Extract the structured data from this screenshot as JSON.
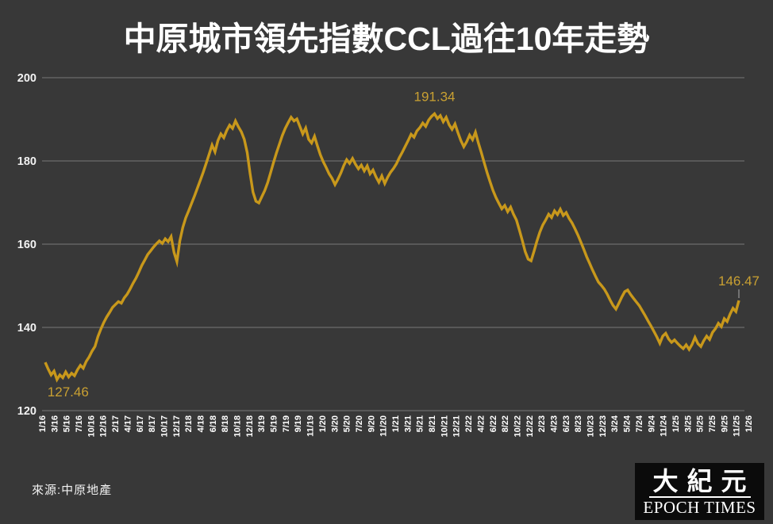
{
  "title": "中原城市領先指數CCL過往10年走勢",
  "source": "來源:中原地產",
  "logo": {
    "chinese": "大紀元",
    "english": "EPOCH TIMES"
  },
  "colors": {
    "background": "#383838",
    "line": "#C8981B",
    "grid": "#8f8f8f",
    "annotation": "#C9A032",
    "axis_text": "#f2f2f2",
    "tick_text": "#ffffff",
    "title_text": "#ffffff",
    "leader_line": "#aaaaaa",
    "logo_bg": "#0b0b0b",
    "logo_text": "#ffffff"
  },
  "chart_data": {
    "type": "line",
    "title": "中原城市領先指數CCL過往10年走勢",
    "xlabel": "",
    "ylabel": "",
    "ylim": [
      120,
      200
    ],
    "yticks": [
      200,
      180,
      160,
      140,
      120
    ],
    "grid": "horizontal",
    "legend": "none",
    "x_labels": [
      "1/16",
      "3/16",
      "5/16",
      "7/16",
      "10/16",
      "12/16",
      "2/17",
      "4/17",
      "6/17",
      "8/17",
      "10/17",
      "12/17",
      "2/18",
      "4/18",
      "6/18",
      "8/18",
      "10/18",
      "12/18",
      "3/19",
      "5/19",
      "7/19",
      "9/19",
      "11/19",
      "1/20",
      "3/20",
      "5/20",
      "7/20",
      "9/20",
      "11/20",
      "1/21",
      "3/21",
      "5/21",
      "8/21",
      "10/21",
      "12/21",
      "2/22",
      "4/22",
      "6/22",
      "8/22",
      "10/22",
      "12/22",
      "2/23",
      "4/23",
      "6/23",
      "8/23",
      "10/23",
      "12/23",
      "3/24",
      "5/24",
      "7/24",
      "9/24",
      "11/24",
      "1/25",
      "3/25",
      "5/25",
      "7/25",
      "9/25",
      "11/25",
      "1/26"
    ],
    "series": [
      {
        "name": "CCL",
        "values": [
          131.6,
          130.0,
          128.6,
          129.5,
          127.46,
          128.6,
          127.9,
          129.3,
          128.1,
          129.0,
          128.4,
          129.8,
          130.9,
          130.2,
          131.8,
          132.9,
          134.3,
          135.4,
          137.8,
          139.6,
          141.2,
          142.5,
          143.6,
          144.8,
          145.5,
          146.2,
          145.8,
          147.1,
          148.0,
          149.2,
          150.6,
          151.8,
          153.3,
          154.9,
          156.2,
          157.5,
          158.4,
          159.3,
          160.1,
          160.8,
          160.2,
          161.3,
          160.6,
          161.8,
          158.0,
          155.8,
          160.8,
          164.0,
          166.3,
          168.0,
          169.8,
          171.6,
          173.5,
          175.4,
          177.3,
          179.4,
          181.6,
          183.8,
          182.2,
          184.9,
          186.5,
          185.6,
          187.3,
          188.6,
          187.8,
          189.6,
          188.2,
          187.0,
          185.2,
          182.0,
          177.0,
          172.5,
          170.3,
          169.9,
          171.4,
          172.9,
          174.8,
          177.2,
          179.6,
          181.9,
          184.0,
          186.1,
          187.8,
          189.2,
          190.5,
          189.6,
          190.1,
          188.3,
          186.5,
          187.9,
          185.2,
          184.3,
          185.9,
          183.6,
          181.5,
          179.8,
          178.4,
          176.9,
          175.8,
          174.3,
          175.6,
          177.1,
          178.9,
          180.3,
          179.4,
          180.6,
          179.2,
          178.1,
          179.0,
          177.6,
          178.8,
          176.9,
          177.8,
          176.2,
          174.9,
          176.4,
          174.6,
          176.1,
          177.3,
          178.2,
          179.3,
          180.8,
          182.1,
          183.5,
          184.9,
          186.4,
          185.7,
          187.2,
          188.0,
          189.1,
          188.3,
          189.8,
          190.7,
          191.34,
          190.2,
          190.9,
          189.4,
          190.5,
          188.7,
          187.6,
          188.9,
          186.8,
          184.9,
          183.4,
          184.6,
          186.2,
          185.1,
          186.9,
          184.3,
          182.0,
          179.5,
          177.1,
          175.0,
          172.9,
          171.2,
          169.8,
          168.5,
          169.3,
          167.8,
          168.9,
          167.2,
          165.8,
          163.4,
          160.9,
          158.2,
          156.4,
          156.0,
          158.3,
          160.7,
          162.9,
          164.6,
          165.8,
          167.2,
          166.4,
          168.0,
          167.1,
          168.4,
          166.9,
          167.6,
          166.2,
          165.1,
          163.7,
          162.2,
          160.5,
          158.8,
          157.0,
          155.4,
          153.8,
          152.3,
          150.9,
          150.1,
          149.2,
          148.0,
          146.6,
          145.3,
          144.4,
          145.8,
          147.3,
          148.6,
          149.0,
          147.9,
          147.0,
          146.1,
          145.2,
          144.0,
          142.8,
          141.5,
          140.3,
          139.0,
          137.7,
          136.2,
          137.9,
          138.6,
          137.2,
          136.4,
          137.0,
          136.2,
          135.5,
          134.9,
          135.8,
          134.7,
          135.9,
          137.6,
          136.1,
          135.4,
          136.8,
          137.9,
          137.1,
          138.8,
          139.7,
          141.0,
          140.2,
          142.1,
          141.4,
          143.2,
          144.6,
          143.8,
          146.47
        ]
      }
    ],
    "annotations": [
      {
        "type": "min",
        "label": "127.46"
      },
      {
        "type": "max",
        "label": "191.34"
      },
      {
        "type": "last",
        "label": "146.47"
      }
    ]
  }
}
